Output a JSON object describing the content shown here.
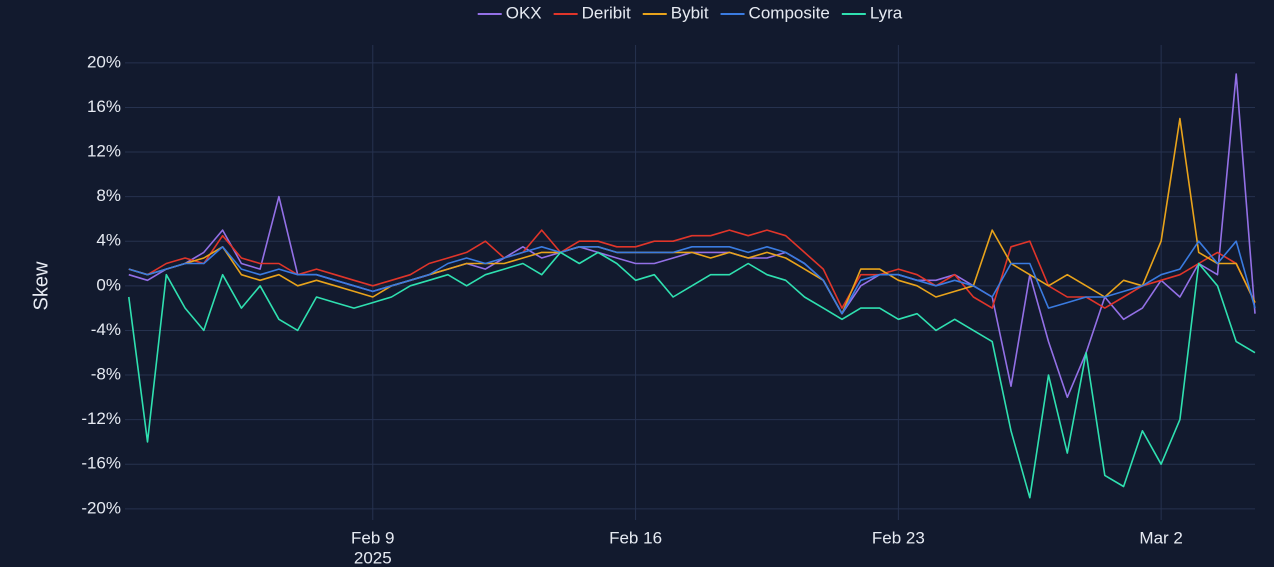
{
  "chart_data": {
    "type": "line",
    "y_label": "Skew",
    "x_year": "2025",
    "x": [
      2.5,
      3,
      3.5,
      4,
      4.5,
      5,
      5.5,
      6,
      6.5,
      7,
      7.5,
      8,
      8.5,
      9,
      9.5,
      10,
      10.5,
      11,
      11.5,
      12,
      12.5,
      13,
      13.5,
      14,
      14.5,
      15,
      15.5,
      16,
      16.5,
      17,
      17.5,
      18,
      18.5,
      19,
      19.5,
      20,
      20.5,
      21,
      21.5,
      22,
      22.5,
      23,
      23.5,
      24,
      24.5,
      25,
      25.5,
      26,
      26.5,
      27,
      27.5,
      28,
      28.5,
      29,
      29.5,
      30,
      30.5,
      31,
      31.5,
      32,
      32.5
    ],
    "xlim": [
      2.4,
      32.5
    ],
    "xticks": [
      {
        "value": 9,
        "label": "Feb 9"
      },
      {
        "value": 16,
        "label": "Feb 16"
      },
      {
        "value": 23,
        "label": "Feb 23"
      },
      {
        "value": 30,
        "label": "Mar 2"
      }
    ],
    "ylim": [
      -21,
      21.6
    ],
    "yticks": [
      {
        "value": 20,
        "label": "20%"
      },
      {
        "value": 16,
        "label": "16%"
      },
      {
        "value": 12,
        "label": "12%"
      },
      {
        "value": 8,
        "label": "8%"
      },
      {
        "value": 4,
        "label": "4%"
      },
      {
        "value": 0,
        "label": "0%"
      },
      {
        "value": -4,
        "label": "-4%"
      },
      {
        "value": -8,
        "label": "-8%"
      },
      {
        "value": -12,
        "label": "-12%"
      },
      {
        "value": -16,
        "label": "-16%"
      },
      {
        "value": -20,
        "label": "-20%"
      }
    ],
    "grid": true,
    "legend": "top",
    "series": [
      {
        "name": "OKX",
        "color": "#9370e6",
        "values": [
          1,
          0.5,
          1.5,
          2,
          3,
          5,
          2,
          1.5,
          8,
          1,
          1,
          0.5,
          0,
          -0.5,
          0,
          0.5,
          1,
          1.5,
          2,
          1.5,
          2.5,
          3.5,
          2.5,
          3,
          3.5,
          3,
          2.5,
          2,
          2,
          2.5,
          3,
          3,
          3,
          2.5,
          2.5,
          3,
          2,
          0.5,
          -2.5,
          0,
          1,
          1,
          0.5,
          0.5,
          1,
          0,
          -1,
          -9,
          1,
          -5,
          -10,
          -6,
          -1,
          -3,
          -2,
          0.5,
          -1,
          2,
          1,
          19,
          -2.5
        ]
      },
      {
        "name": "Deribit",
        "color": "#e0352a",
        "values": [
          1.5,
          1,
          2,
          2.5,
          2,
          4.5,
          2.5,
          2,
          2,
          1,
          1.5,
          1,
          0.5,
          0,
          0.5,
          1,
          2,
          2.5,
          3,
          4,
          2.5,
          3,
          5,
          3,
          4,
          4,
          3.5,
          3.5,
          4,
          4,
          4.5,
          4.5,
          5,
          4.5,
          5,
          4.5,
          3,
          1.5,
          -2,
          1,
          1,
          1.5,
          1,
          0,
          1,
          -1,
          -2,
          3.5,
          4,
          0,
          -1,
          -1,
          -2,
          -1,
          0,
          0.5,
          1,
          2,
          3,
          2,
          -1.5
        ]
      },
      {
        "name": "Bybit",
        "color": "#e8a31b",
        "values": [
          1.5,
          1,
          1.5,
          2,
          2.5,
          3.5,
          1,
          0.5,
          1,
          0,
          0.5,
          0,
          -0.5,
          -1,
          0,
          0.5,
          1,
          1.5,
          2,
          2,
          2,
          2.5,
          3,
          3,
          3.5,
          3.5,
          3,
          3,
          3,
          3,
          3,
          2.5,
          3,
          2.5,
          3,
          2.5,
          1.5,
          0.5,
          -2.5,
          1.5,
          1.5,
          0.5,
          0,
          -1,
          -0.5,
          0,
          5,
          2,
          1,
          0,
          1,
          0,
          -1,
          0.5,
          0,
          4,
          15,
          3,
          2,
          2,
          -1.5
        ]
      },
      {
        "name": "Composite",
        "color": "#3a7be0",
        "values": [
          1.5,
          1,
          1.5,
          2,
          2,
          3.5,
          1.5,
          1,
          1.5,
          1,
          1,
          0.5,
          0,
          -0.5,
          0,
          0.5,
          1,
          2,
          2.5,
          2,
          2.5,
          3,
          3.5,
          3,
          3.5,
          3.5,
          3,
          3,
          3,
          3,
          3.5,
          3.5,
          3.5,
          3,
          3.5,
          3,
          2,
          0.5,
          -2.5,
          0.5,
          1,
          1,
          0.5,
          0,
          0.5,
          0,
          -1,
          2,
          2,
          -2,
          -1.5,
          -1,
          -1,
          -0.5,
          0,
          1,
          1.5,
          4,
          2,
          4,
          -2
        ]
      },
      {
        "name": "Lyra",
        "color": "#2fe0b0",
        "values": [
          -1,
          -14,
          1,
          -2,
          -4,
          1,
          -2,
          0,
          -3,
          -4,
          -1,
          -1.5,
          -2,
          -1.5,
          -1,
          0,
          0.5,
          1,
          0,
          1,
          1.5,
          2,
          1,
          3,
          2,
          3,
          2,
          0.5,
          1,
          -1,
          0,
          1,
          1,
          2,
          1,
          0.5,
          -1,
          -2,
          -3,
          -2,
          -2,
          -3,
          -2.5,
          -4,
          -3,
          -4,
          -5,
          -13,
          -19,
          -8,
          -15,
          -6,
          -17,
          -18,
          -13,
          -16,
          -12,
          2,
          0,
          -5,
          -6
        ]
      }
    ]
  }
}
